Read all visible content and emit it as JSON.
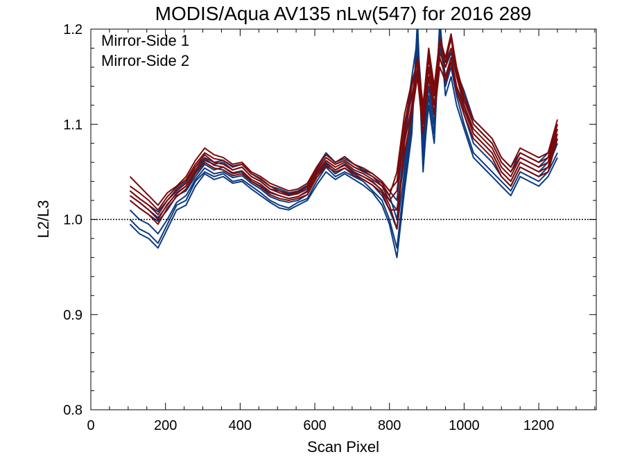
{
  "chart_data": {
    "type": "line",
    "title": "MODIS/Aqua AV135 nLw(547) for 2016 289",
    "xlabel": "Scan Pixel",
    "ylabel": "L2/L3",
    "xlim": [
      0,
      1354
    ],
    "ylim": [
      0.8,
      1.2
    ],
    "xticks": [
      0,
      200,
      400,
      600,
      800,
      1000,
      1200
    ],
    "xtick_labels": [
      "0",
      "200",
      "400",
      "600",
      "800",
      "1000",
      "1200"
    ],
    "yticks": [
      0.8,
      0.9,
      1.0,
      1.1,
      1.2
    ],
    "ytick_labels": [
      "0.8",
      "0.9",
      "1.0",
      "1.1",
      "1.2"
    ],
    "reference_line": 1.0,
    "legend_position": "top-left",
    "x": [
      105,
      130,
      155,
      180,
      205,
      230,
      255,
      280,
      305,
      330,
      355,
      380,
      405,
      430,
      455,
      480,
      505,
      530,
      555,
      580,
      605,
      630,
      655,
      680,
      705,
      730,
      755,
      780,
      800,
      820,
      840,
      860,
      875,
      890,
      905,
      920,
      935,
      950,
      965,
      980,
      1000,
      1025,
      1050,
      1075,
      1100,
      1125,
      1150,
      1175,
      1200,
      1225,
      1250
    ],
    "series": [
      {
        "name": "Mirror-Side 1",
        "color": "#0b3a7e",
        "lines": [
          [
            1.02,
            1.012,
            1.005,
            0.998,
            1.01,
            1.025,
            1.03,
            1.045,
            1.058,
            1.052,
            1.055,
            1.048,
            1.05,
            1.04,
            1.035,
            1.028,
            1.025,
            1.022,
            1.024,
            1.03,
            1.048,
            1.06,
            1.052,
            1.058,
            1.05,
            1.045,
            1.04,
            1.03,
            1.02,
            1.01,
            1.06,
            1.12,
            1.18,
            1.08,
            1.15,
            1.11,
            1.19,
            1.15,
            1.17,
            1.14,
            1.12,
            1.09,
            1.08,
            1.07,
            1.05,
            1.04,
            1.06,
            1.055,
            1.05,
            1.06,
            1.085
          ],
          [
            1.0,
            0.99,
            0.985,
            0.975,
            0.995,
            1.015,
            1.02,
            1.04,
            1.05,
            1.045,
            1.048,
            1.04,
            1.042,
            1.035,
            1.028,
            1.02,
            1.015,
            1.012,
            1.018,
            1.022,
            1.04,
            1.055,
            1.045,
            1.05,
            1.045,
            1.04,
            1.03,
            1.02,
            1.0,
            0.97,
            1.04,
            1.1,
            1.2,
            1.05,
            1.13,
            1.09,
            1.21,
            1.14,
            1.16,
            1.13,
            1.1,
            1.07,
            1.06,
            1.05,
            1.04,
            1.03,
            1.05,
            1.045,
            1.04,
            1.05,
            1.07
          ],
          [
            1.025,
            1.018,
            1.01,
            1.002,
            1.015,
            1.028,
            1.035,
            1.05,
            1.062,
            1.058,
            1.06,
            1.052,
            1.055,
            1.045,
            1.04,
            1.032,
            1.03,
            1.026,
            1.028,
            1.034,
            1.052,
            1.065,
            1.058,
            1.062,
            1.055,
            1.05,
            1.045,
            1.035,
            1.025,
            1.0,
            1.08,
            1.14,
            1.17,
            1.1,
            1.16,
            1.12,
            1.18,
            1.16,
            1.175,
            1.15,
            1.13,
            1.1,
            1.09,
            1.08,
            1.06,
            1.05,
            1.065,
            1.06,
            1.055,
            1.065,
            1.095
          ],
          [
            0.995,
            0.985,
            0.98,
            0.97,
            0.99,
            1.01,
            1.015,
            1.035,
            1.048,
            1.042,
            1.045,
            1.038,
            1.04,
            1.032,
            1.025,
            1.018,
            1.012,
            1.01,
            1.015,
            1.02,
            1.036,
            1.05,
            1.042,
            1.048,
            1.042,
            1.036,
            1.028,
            1.015,
            0.995,
            0.96,
            1.03,
            1.09,
            1.21,
            1.06,
            1.12,
            1.08,
            1.2,
            1.13,
            1.15,
            1.12,
            1.095,
            1.065,
            1.055,
            1.045,
            1.035,
            1.025,
            1.045,
            1.04,
            1.035,
            1.045,
            1.065
          ],
          [
            1.03,
            1.022,
            1.015,
            1.008,
            1.02,
            1.032,
            1.04,
            1.055,
            1.065,
            1.06,
            1.062,
            1.055,
            1.058,
            1.048,
            1.042,
            1.035,
            1.032,
            1.028,
            1.03,
            1.036,
            1.055,
            1.07,
            1.06,
            1.064,
            1.058,
            1.052,
            1.048,
            1.04,
            1.03,
            1.02,
            1.09,
            1.15,
            1.19,
            1.11,
            1.17,
            1.13,
            1.195,
            1.165,
            1.18,
            1.155,
            1.135,
            1.105,
            1.095,
            1.085,
            1.065,
            1.055,
            1.07,
            1.065,
            1.06,
            1.07,
            1.1
          ],
          [
            1.01,
            1.0,
            0.995,
            0.985,
            1.0,
            1.018,
            1.025,
            1.042,
            1.054,
            1.048,
            1.05,
            1.044,
            1.046,
            1.038,
            1.032,
            1.024,
            1.02,
            1.018,
            1.02,
            1.026,
            1.044,
            1.058,
            1.048,
            1.054,
            1.048,
            1.042,
            1.036,
            1.025,
            1.01,
            0.99,
            1.05,
            1.11,
            1.185,
            1.07,
            1.14,
            1.1,
            1.205,
            1.145,
            1.165,
            1.135,
            1.11,
            1.08,
            1.07,
            1.06,
            1.045,
            1.035,
            1.055,
            1.05,
            1.045,
            1.055,
            1.08
          ]
        ]
      },
      {
        "name": "Mirror-Side 2",
        "color": "#7a0a0a",
        "lines": [
          [
            1.03,
            1.022,
            1.015,
            1.005,
            1.02,
            1.03,
            1.038,
            1.055,
            1.068,
            1.06,
            1.058,
            1.052,
            1.055,
            1.045,
            1.04,
            1.032,
            1.028,
            1.025,
            1.027,
            1.032,
            1.05,
            1.062,
            1.055,
            1.06,
            1.052,
            1.048,
            1.042,
            1.035,
            1.02,
            1.03,
            1.09,
            1.13,
            1.16,
            1.11,
            1.17,
            1.13,
            1.175,
            1.16,
            1.18,
            1.15,
            1.12,
            1.095,
            1.085,
            1.075,
            1.055,
            1.045,
            1.065,
            1.06,
            1.055,
            1.06,
            1.095
          ],
          [
            1.045,
            1.035,
            1.025,
            1.015,
            1.028,
            1.035,
            1.045,
            1.062,
            1.075,
            1.068,
            1.065,
            1.058,
            1.06,
            1.05,
            1.045,
            1.038,
            1.034,
            1.03,
            1.032,
            1.038,
            1.055,
            1.068,
            1.06,
            1.066,
            1.058,
            1.054,
            1.048,
            1.04,
            1.03,
            1.04,
            1.1,
            1.14,
            1.17,
            1.12,
            1.18,
            1.14,
            1.19,
            1.17,
            1.195,
            1.16,
            1.13,
            1.105,
            1.095,
            1.085,
            1.065,
            1.055,
            1.075,
            1.07,
            1.065,
            1.07,
            1.105
          ],
          [
            1.02,
            1.012,
            1.005,
            0.995,
            1.012,
            1.024,
            1.032,
            1.048,
            1.06,
            1.054,
            1.052,
            1.046,
            1.048,
            1.04,
            1.034,
            1.026,
            1.022,
            1.02,
            1.022,
            1.026,
            1.044,
            1.056,
            1.05,
            1.054,
            1.046,
            1.042,
            1.036,
            1.028,
            1.01,
            1.01,
            1.07,
            1.11,
            1.15,
            1.09,
            1.15,
            1.11,
            1.16,
            1.145,
            1.165,
            1.135,
            1.11,
            1.085,
            1.075,
            1.065,
            1.045,
            1.035,
            1.055,
            1.05,
            1.045,
            1.05,
            1.085
          ],
          [
            1.035,
            1.028,
            1.02,
            1.01,
            1.024,
            1.034,
            1.042,
            1.058,
            1.07,
            1.064,
            1.062,
            1.056,
            1.058,
            1.048,
            1.043,
            1.035,
            1.03,
            1.027,
            1.029,
            1.035,
            1.053,
            1.065,
            1.058,
            1.062,
            1.055,
            1.051,
            1.045,
            1.038,
            1.025,
            1.05,
            1.11,
            1.145,
            1.165,
            1.105,
            1.175,
            1.135,
            1.185,
            1.165,
            1.19,
            1.155,
            1.125,
            1.1,
            1.09,
            1.08,
            1.06,
            1.05,
            1.07,
            1.065,
            1.06,
            1.065,
            1.1
          ],
          [
            1.025,
            1.018,
            1.01,
            1.0,
            1.016,
            1.027,
            1.035,
            1.052,
            1.064,
            1.057,
            1.055,
            1.049,
            1.051,
            1.042,
            1.037,
            1.029,
            1.025,
            1.022,
            1.024,
            1.029,
            1.047,
            1.059,
            1.052,
            1.057,
            1.049,
            1.045,
            1.039,
            1.031,
            1.015,
            0.99,
            1.08,
            1.12,
            1.155,
            1.1,
            1.16,
            1.12,
            1.17,
            1.15,
            1.17,
            1.14,
            1.115,
            1.09,
            1.08,
            1.07,
            1.05,
            1.04,
            1.06,
            1.055,
            1.05,
            1.055,
            1.09
          ]
        ]
      }
    ]
  }
}
